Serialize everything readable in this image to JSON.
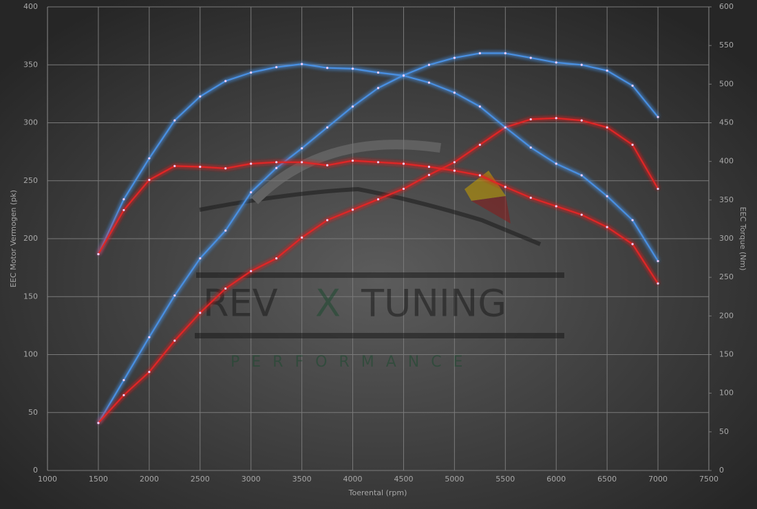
{
  "chart_data": {
    "type": "line",
    "x_label": "Toerental (rpm)",
    "y_label": "EEC Motor Vermogen (pk)",
    "y2_label": "EEC Torque (Nm)",
    "watermark": [
      "REV",
      "X",
      "TUNING",
      "PERFORMANCE"
    ],
    "x": [
      1500,
      1750,
      2000,
      2250,
      2500,
      2750,
      3000,
      3250,
      3500,
      3750,
      4000,
      4250,
      4500,
      4750,
      5000,
      5250,
      5500,
      5750,
      6000,
      6250,
      6500,
      6750,
      7000
    ],
    "series": [
      {
        "color": "#4a90e2",
        "axis": "y",
        "values": [
          41,
          78,
          115,
          151,
          183,
          207,
          240,
          261,
          278,
          296,
          314,
          330,
          341,
          350,
          356,
          360,
          360,
          356,
          352,
          350,
          345,
          332,
          305
        ]
      },
      {
        "color": "#e02828",
        "axis": "y",
        "values": [
          41,
          65,
          85,
          112,
          136,
          157,
          172,
          183,
          201,
          216,
          225,
          234,
          243,
          255,
          266,
          281,
          296,
          303,
          304,
          302,
          296,
          281,
          243
        ]
      },
      {
        "color": "#4a90e2",
        "axis": "y2",
        "values": [
          280,
          351,
          404,
          453,
          484,
          504,
          515,
          522,
          526,
          521,
          520,
          515,
          511,
          502,
          489,
          471,
          444,
          418,
          397,
          382,
          355,
          324,
          271
        ]
      },
      {
        "color": "#e02828",
        "axis": "y2",
        "values": [
          280,
          337,
          376,
          394,
          393,
          391,
          397,
          399,
          399,
          395,
          401,
          399,
          397,
          393,
          388,
          382,
          367,
          353,
          342,
          331,
          315,
          293,
          242
        ]
      }
    ],
    "xlim": [
      1000,
      7500
    ],
    "xticks": [
      1000,
      1500,
      2000,
      2500,
      3000,
      3500,
      4000,
      4500,
      5000,
      5500,
      6000,
      6500,
      7000,
      7500
    ],
    "ylim": [
      0,
      400
    ],
    "yticks": [
      0,
      50,
      100,
      150,
      200,
      250,
      300,
      350,
      400
    ],
    "y2lim": [
      0,
      600
    ],
    "y2ticks": [
      0,
      50,
      100,
      150,
      200,
      250,
      300,
      350,
      400,
      450,
      500,
      550,
      600
    ],
    "grid": true
  }
}
